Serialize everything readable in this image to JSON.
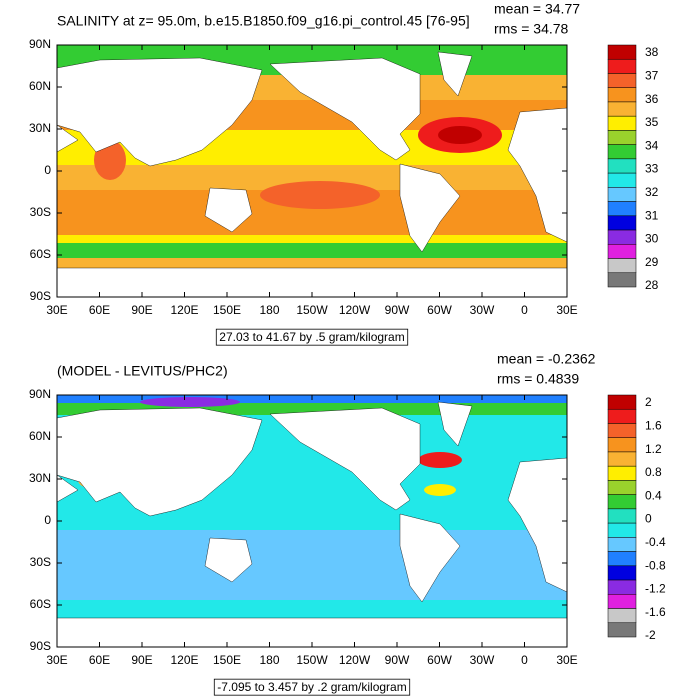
{
  "panels": [
    {
      "title": "SALINITY at z=  95.0m, b.e15.B1850.f09_g16.pi_control.45 [76-95]",
      "stats": [
        "mean = 34.77",
        "rms = 34.78"
      ],
      "info": "27.03 to 41.67 by .5 gram/kilogram",
      "colorbar": {
        "labels": [
          "38",
          "37",
          "36",
          "35",
          "34",
          "33",
          "32",
          "31",
          "30",
          "29",
          "28"
        ],
        "colors": [
          "#c00000",
          "#ee1c1c",
          "#f4622a",
          "#f7931e",
          "#f9b233",
          "#ffee00",
          "#9ad22c",
          "#33cc33",
          "#22e0c0",
          "#22e8e8",
          "#66c8ff",
          "#2080ff",
          "#0000e0",
          "#8a2be2",
          "#e020e0",
          "#c8c8c8",
          "#787878"
        ]
      }
    },
    {
      "title": "(MODEL - LEVITUS/PHC2)",
      "stats": [
        "mean = -0.2362",
        "rms = 0.4839"
      ],
      "info": "-7.095 to 3.457 by .2 gram/kilogram",
      "colorbar": {
        "labels": [
          "2",
          "1.6",
          "1.2",
          "0.8",
          "0.4",
          "0",
          "-0.4",
          "-0.8",
          "-1.2",
          "-1.6",
          "-2"
        ],
        "colors": [
          "#c00000",
          "#ee1c1c",
          "#f4622a",
          "#f7931e",
          "#f9b233",
          "#ffee00",
          "#9ad22c",
          "#33cc33",
          "#22e0c0",
          "#22e8e8",
          "#66c8ff",
          "#2080ff",
          "#0000e0",
          "#8a2be2",
          "#e020e0",
          "#c8c8c8",
          "#787878"
        ]
      }
    }
  ],
  "lat_labels": [
    "90N",
    "60N",
    "30N",
    "0",
    "30S",
    "60S",
    "90S"
  ],
  "lon_labels": [
    "30E",
    "60E",
    "90E",
    "120E",
    "150E",
    "180",
    "150W",
    "120W",
    "90W",
    "60W",
    "30W",
    "0",
    "30E"
  ]
}
